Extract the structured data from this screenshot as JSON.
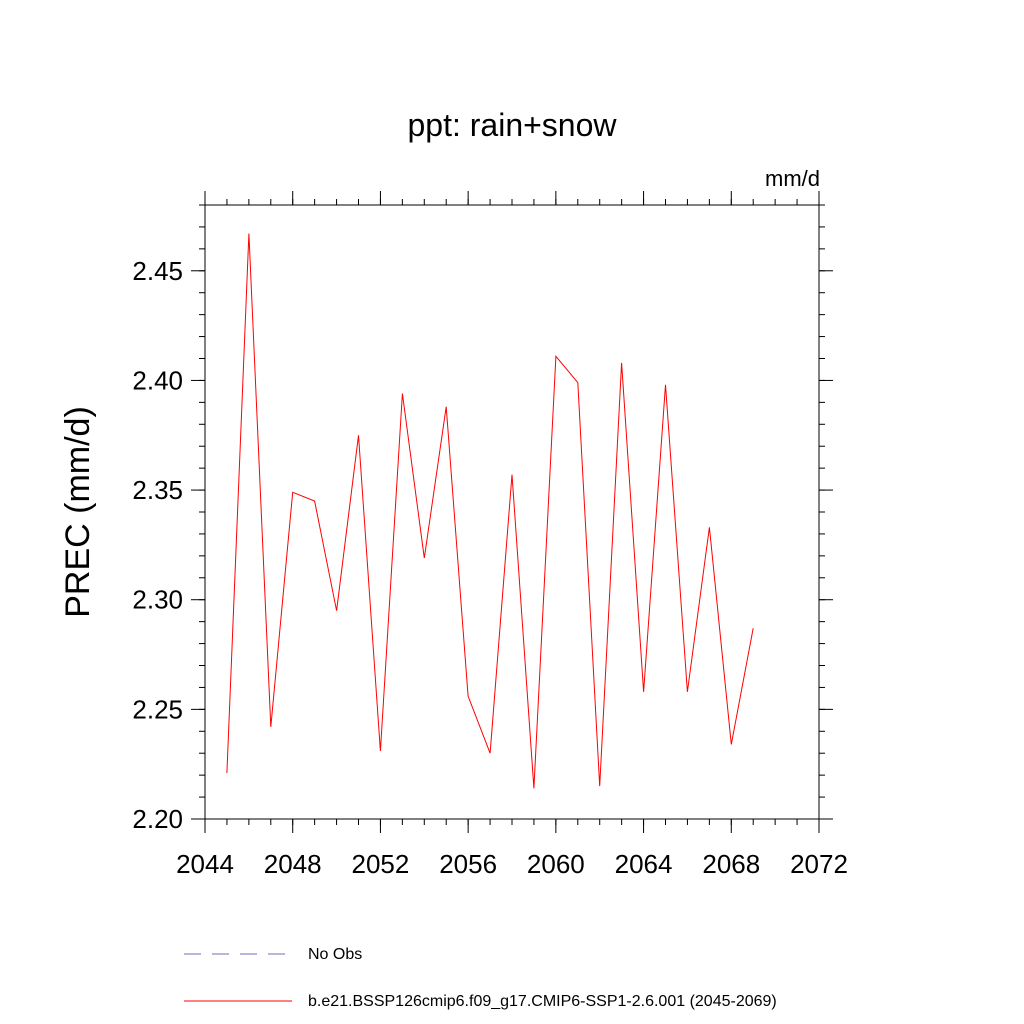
{
  "chart_data": {
    "type": "line",
    "title": "ppt: rain+snow",
    "units": "mm/d",
    "ylabel": "PREC  (mm/d)",
    "xlabel": "",
    "xlim": [
      2044,
      2072
    ],
    "ylim": [
      2.2,
      2.48
    ],
    "xticks": [
      "2044",
      "2048",
      "2052",
      "2056",
      "2060",
      "2064",
      "2068",
      "2072"
    ],
    "yticks": [
      "2.20",
      "2.25",
      "2.30",
      "2.35",
      "2.40",
      "2.45"
    ],
    "grid": false,
    "legend_position": "bottom",
    "series": [
      {
        "name": "b.e21.BSSP126cmip6.f09_g17.CMIP6-SSP1-2.6.001 (2045-2069)",
        "color": "#ff0000",
        "style": "solid",
        "x": [
          2045,
          2046,
          2047,
          2048,
          2049,
          2050,
          2051,
          2052,
          2053,
          2054,
          2055,
          2056,
          2057,
          2058,
          2059,
          2060,
          2061,
          2062,
          2063,
          2064,
          2065,
          2066,
          2067,
          2068,
          2069
        ],
        "y": [
          2.221,
          2.467,
          2.242,
          2.349,
          2.345,
          2.295,
          2.375,
          2.231,
          2.394,
          2.319,
          2.388,
          2.256,
          2.23,
          2.357,
          2.214,
          2.411,
          2.399,
          2.215,
          2.408,
          2.258,
          2.398,
          2.258,
          2.333,
          2.234,
          2.287
        ]
      },
      {
        "name": "No Obs",
        "color": "#7b68b8",
        "style": "dashed",
        "x": [],
        "y": []
      }
    ]
  }
}
